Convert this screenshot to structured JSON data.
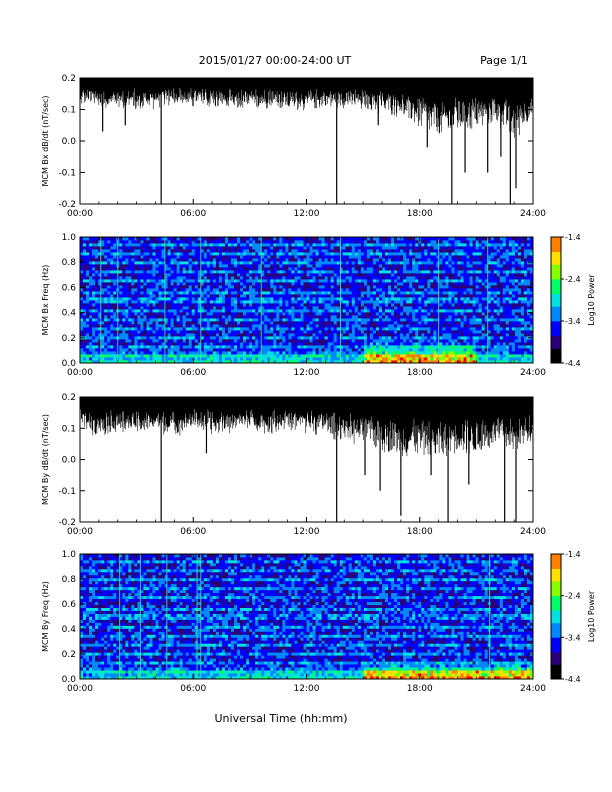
{
  "header": {
    "title": "2015/01/27  00:00-24:00 UT",
    "page": "Page 1/1"
  },
  "footer": {
    "xlabel": "Universal Time (hh:mm)"
  },
  "colors": {
    "trace": "#000000",
    "spectrogram_cmap": [
      "#000000",
      "#2a0078",
      "#0000ff",
      "#0088ff",
      "#00e0e0",
      "#00ff66",
      "#88ff00",
      "#ffe000",
      "#ff8000",
      "#ff0000"
    ]
  },
  "chart_data": [
    {
      "type": "line",
      "ylabel": "MCM Bx dB/dt (nT/sec)",
      "xlim": [
        0,
        24
      ],
      "ylim": [
        -0.2,
        0.2
      ],
      "xticks": [
        "00:00",
        "06:00",
        "12:00",
        "18:00",
        "24:00"
      ],
      "yticks": [
        "-0.2",
        "-0.1",
        "0.0",
        "0.1",
        "0.2"
      ],
      "series": [
        {
          "x": [
            0,
            1,
            2,
            3,
            4,
            5,
            6,
            7,
            8,
            9,
            10,
            11,
            12,
            13,
            14,
            15,
            16,
            17,
            18,
            19,
            20,
            21,
            22,
            23,
            24
          ],
          "upper": [
            0.2,
            0.2,
            0.2,
            0.2,
            0.2,
            0.2,
            0.2,
            0.2,
            0.2,
            0.2,
            0.2,
            0.2,
            0.2,
            0.2,
            0.2,
            0.2,
            0.2,
            0.2,
            0.2,
            0.2,
            0.2,
            0.2,
            0.2,
            0.2,
            0.2
          ],
          "lower": [
            0.14,
            0.13,
            0.13,
            0.12,
            0.13,
            0.14,
            0.13,
            0.13,
            0.12,
            0.12,
            0.13,
            0.12,
            0.12,
            0.13,
            0.13,
            0.12,
            0.11,
            0.1,
            0.06,
            0.03,
            0.05,
            0.06,
            0.08,
            0.02,
            0.1
          ]
        }
      ],
      "spikes": [
        {
          "x": 1.2,
          "y": 0.03
        },
        {
          "x": 2.4,
          "y": 0.05
        },
        {
          "x": 4.3,
          "y": -0.2
        },
        {
          "x": 13.6,
          "y": -0.2
        },
        {
          "x": 15.8,
          "y": 0.05
        },
        {
          "x": 18.4,
          "y": -0.02
        },
        {
          "x": 19.7,
          "y": -0.2
        },
        {
          "x": 20.4,
          "y": -0.1
        },
        {
          "x": 21.6,
          "y": -0.1
        },
        {
          "x": 22.3,
          "y": -0.05
        },
        {
          "x": 22.8,
          "y": -0.2
        },
        {
          "x": 23.1,
          "y": -0.15
        }
      ]
    },
    {
      "type": "heatmap",
      "ylabel": "MCM Bx Freq (Hz)",
      "xlim": [
        0,
        24
      ],
      "ylim": [
        0,
        1
      ],
      "xticks": [
        "00:00",
        "06:00",
        "12:00",
        "18:00",
        "24:00"
      ],
      "yticks": [
        "0.0",
        "0.2",
        "0.4",
        "0.6",
        "0.8",
        "1.0"
      ],
      "colorbar": {
        "label": "Log10 Power",
        "range": [
          -4.4,
          -1.4
        ],
        "ticks": [
          "-1.4",
          "-2.4",
          "-3.4",
          "-4.4"
        ]
      },
      "background_level": -3.6,
      "hot_region": {
        "x": [
          15,
          21
        ],
        "freq_max": 0.2,
        "level": -1.8
      },
      "vertical_lines_x": [
        1.1,
        2.0,
        4.5,
        6.4,
        9.6,
        13.8,
        19.0,
        21.6
      ],
      "horizontal_bands_hz": [
        0.05,
        0.13,
        0.2,
        0.27,
        0.35,
        0.42,
        0.5,
        0.57,
        0.65,
        0.72,
        0.8,
        0.87,
        0.95
      ]
    },
    {
      "type": "line",
      "ylabel": "MCM By dB/dt (nT/sec)",
      "xlim": [
        0,
        24
      ],
      "ylim": [
        -0.2,
        0.2
      ],
      "xticks": [
        "00:00",
        "06:00",
        "12:00",
        "18:00",
        "24:00"
      ],
      "yticks": [
        "-0.2",
        "-0.1",
        "0.0",
        "0.1",
        "0.2"
      ],
      "series": [
        {
          "x": [
            0,
            1,
            2,
            3,
            4,
            5,
            6,
            7,
            8,
            9,
            10,
            11,
            12,
            13,
            14,
            15,
            16,
            17,
            18,
            19,
            20,
            21,
            22,
            23,
            24
          ],
          "upper": [
            0.2,
            0.2,
            0.2,
            0.2,
            0.2,
            0.2,
            0.2,
            0.2,
            0.2,
            0.2,
            0.2,
            0.2,
            0.2,
            0.2,
            0.2,
            0.2,
            0.2,
            0.2,
            0.2,
            0.2,
            0.2,
            0.2,
            0.2,
            0.2,
            0.2
          ],
          "lower": [
            0.12,
            0.1,
            0.11,
            0.1,
            0.11,
            0.1,
            0.12,
            0.1,
            0.11,
            0.12,
            0.1,
            0.12,
            0.11,
            0.1,
            0.08,
            0.07,
            0.05,
            0.03,
            0.04,
            0.02,
            0.05,
            0.03,
            0.06,
            0.04,
            0.08
          ]
        }
      ],
      "spikes": [
        {
          "x": 4.3,
          "y": -0.2
        },
        {
          "x": 6.7,
          "y": 0.02
        },
        {
          "x": 13.6,
          "y": -0.2
        },
        {
          "x": 15.1,
          "y": -0.05
        },
        {
          "x": 15.9,
          "y": -0.1
        },
        {
          "x": 17.0,
          "y": -0.18
        },
        {
          "x": 18.6,
          "y": -0.05
        },
        {
          "x": 19.5,
          "y": -0.2
        },
        {
          "x": 20.6,
          "y": -0.08
        },
        {
          "x": 22.5,
          "y": -0.2
        },
        {
          "x": 23.1,
          "y": -0.2
        }
      ]
    },
    {
      "type": "heatmap",
      "ylabel": "MCM By Freq (Hz)",
      "xlim": [
        0,
        24
      ],
      "ylim": [
        0,
        1
      ],
      "xticks": [
        "00:00",
        "06:00",
        "12:00",
        "18:00",
        "24:00"
      ],
      "yticks": [
        "0.0",
        "0.2",
        "0.4",
        "0.6",
        "0.8",
        "1.0"
      ],
      "colorbar": {
        "label": "Log10 Power",
        "range": [
          -4.4,
          -1.4
        ],
        "ticks": [
          "-1.4",
          "-2.4",
          "-3.4",
          "-4.4"
        ]
      },
      "background_level": -3.6,
      "hot_region": {
        "x": [
          15,
          24
        ],
        "freq_max": 0.15,
        "level": -1.8
      },
      "vertical_lines_x": [
        2.1,
        3.2,
        4.6,
        6.2,
        6.4,
        21.7
      ],
      "horizontal_bands_hz": [
        0.05,
        0.13,
        0.2,
        0.27,
        0.35,
        0.42,
        0.5,
        0.57,
        0.65,
        0.72,
        0.8,
        0.87,
        0.95
      ]
    }
  ]
}
